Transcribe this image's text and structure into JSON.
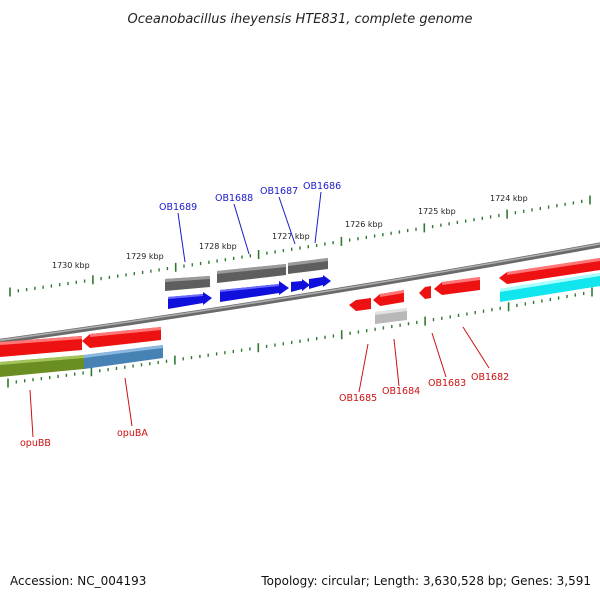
{
  "title": "Oceanobacillus iheyensis HTE831, complete genome",
  "footer": {
    "accession": "Accession: NC_004193",
    "summary": "Topology: circular; Length: 3,630,528 bp; Genes: 3,591"
  },
  "colors": {
    "backbone": "#8a8a8a",
    "tick": "#2f7a2f",
    "forward_label": "#1a1acc",
    "reverse_label": "#cc1111",
    "gene_red": "#ee1111",
    "gene_blue": "#1010dd",
    "gene_gray": "#6a6a6a",
    "gene_lightgray": "#b8b8b8",
    "gene_cyan": "#11e6ee",
    "gene_olive": "#6b8e23",
    "gene_steel": "#4682b4"
  },
  "scale": {
    "unit": "kbp",
    "major_ticks": [
      {
        "label": "1724 kbp"
      },
      {
        "label": "1725 kbp"
      },
      {
        "label": "1726 kbp"
      },
      {
        "label": "1727 kbp"
      },
      {
        "label": "1728 kbp"
      },
      {
        "label": "1729 kbp"
      },
      {
        "label": "1730 kbp"
      }
    ]
  },
  "genes": {
    "forward_labels": [
      "OB1689",
      "OB1688",
      "OB1687",
      "OB1686"
    ],
    "reverse_labels": [
      "OB1685",
      "OB1684",
      "OB1683",
      "OB1682",
      "opuBB",
      "opuBA"
    ]
  }
}
